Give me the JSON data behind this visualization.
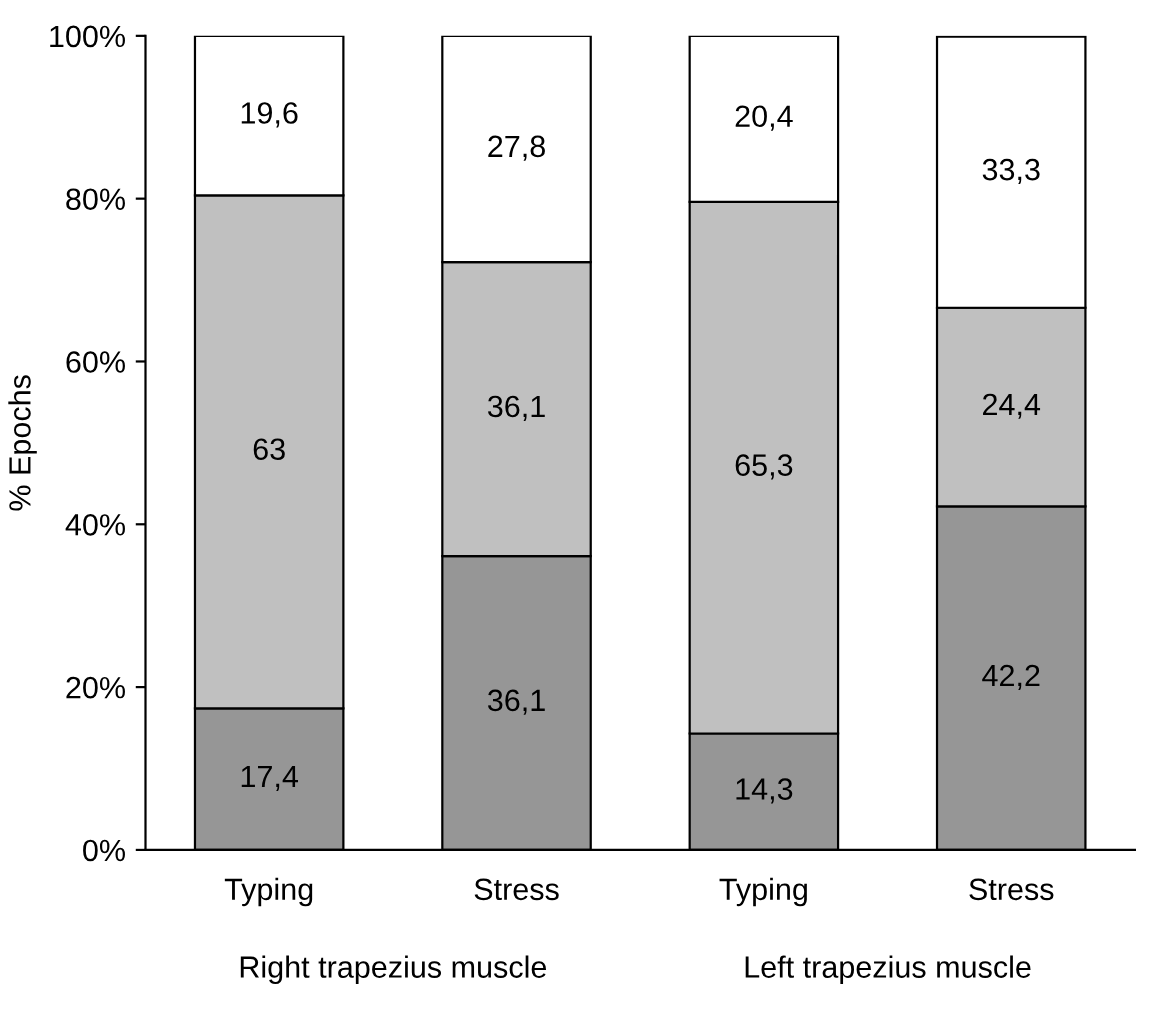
{
  "chart_data": {
    "type": "bar",
    "stacked": true,
    "ylabel": "% Epochs",
    "categories": [
      "Typing",
      "Stress",
      "Typing",
      "Stress"
    ],
    "series": [
      {
        "color": "#969696",
        "values": [
          17.4,
          36.1,
          14.3,
          42.2
        ],
        "value_labels": [
          "17,4",
          "36,1",
          "14,3",
          "42,2"
        ]
      },
      {
        "color": "#c0c0c0",
        "values": [
          63,
          36.1,
          65.3,
          24.4
        ],
        "value_labels": [
          "63",
          "36,1",
          "65,3",
          "24,4"
        ]
      },
      {
        "color": "#ffffff",
        "values": [
          19.6,
          27.8,
          20.4,
          33.3
        ],
        "value_labels": [
          "19,6",
          "27,8",
          "20,4",
          "33,3"
        ]
      }
    ],
    "ylim": [
      0,
      100
    ],
    "yticks": [
      {
        "value": 0,
        "label": "0%"
      },
      {
        "value": 20,
        "label": "20%"
      },
      {
        "value": 40,
        "label": "40%"
      },
      {
        "value": 60,
        "label": "60%"
      },
      {
        "value": 80,
        "label": "80%"
      },
      {
        "value": 100,
        "label": "100%"
      }
    ],
    "annotations": [
      "Right trapezius muscle",
      "Left trapezius muscle"
    ],
    "grid": false,
    "legend": false
  }
}
